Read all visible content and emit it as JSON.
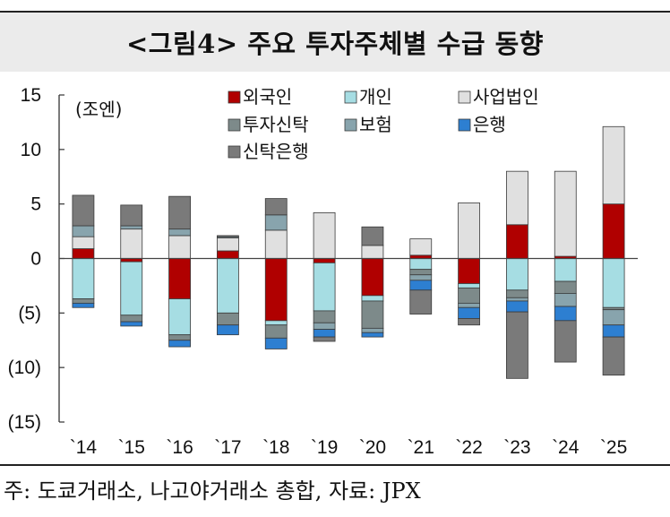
{
  "title": "<그림4> 주요 투자주체별 수급 동향",
  "footer": "주: 도쿄거래소, 나고야거래소 총합, 자료: JPX",
  "chart_data": {
    "type": "bar",
    "stacked": true,
    "unit_label": "(조엔)",
    "ylim": [
      -15,
      15
    ],
    "yticks": [
      15,
      10,
      5,
      0,
      -5,
      -10,
      -15
    ],
    "ytick_labels": [
      "15",
      "10",
      "5",
      "0",
      "(5)",
      "(10)",
      "(15)"
    ],
    "categories": [
      "`14",
      "`15",
      "`16",
      "`17",
      "`18",
      "`19",
      "`20",
      "`21",
      "`22",
      "`23",
      "`24",
      "`25"
    ],
    "legend_position": "top",
    "series": [
      {
        "name": "외국인",
        "color": "#b00000",
        "values": [
          0.9,
          -0.3,
          -3.7,
          0.7,
          -5.7,
          -0.4,
          -3.4,
          0.3,
          -2.3,
          3.1,
          0.2,
          5.0
        ]
      },
      {
        "name": "개인",
        "color": "#a6dde3",
        "values": [
          -3.7,
          -4.9,
          -3.3,
          -5.0,
          -0.4,
          -4.4,
          -0.5,
          -1.0,
          -0.4,
          -2.9,
          -2.1,
          -4.5
        ]
      },
      {
        "name": "사업법인",
        "color": "#e0e0e0",
        "values": [
          1.1,
          2.7,
          2.1,
          1.2,
          2.6,
          4.2,
          1.2,
          1.5,
          5.1,
          4.9,
          7.8,
          7.1
        ]
      },
      {
        "name": "투자신탁",
        "color": "#7d8a8a",
        "values": [
          -0.4,
          -0.6,
          -0.5,
          -1.1,
          -1.2,
          -1.1,
          -2.5,
          -0.5,
          -1.4,
          -0.7,
          -1.1,
          -0.2
        ]
      },
      {
        "name": "보험",
        "color": "#88a4ad",
        "values": [
          1.0,
          0.3,
          0.6,
          0.1,
          1.4,
          -0.6,
          -0.4,
          -0.5,
          -0.4,
          -0.3,
          -1.2,
          -1.4
        ]
      },
      {
        "name": "은행",
        "color": "#2d7fd1",
        "values": [
          -0.4,
          -0.4,
          -0.6,
          -0.9,
          -1.0,
          -0.7,
          -0.4,
          -0.9,
          -1.0,
          -1.0,
          -1.3,
          -1.1
        ]
      },
      {
        "name": "신탁은행",
        "color": "#7a7a7a",
        "values": [
          2.8,
          1.9,
          3.0,
          0.1,
          1.5,
          -0.4,
          1.7,
          -2.2,
          -0.6,
          -6.1,
          -3.8,
          -3.5
        ]
      }
    ]
  }
}
